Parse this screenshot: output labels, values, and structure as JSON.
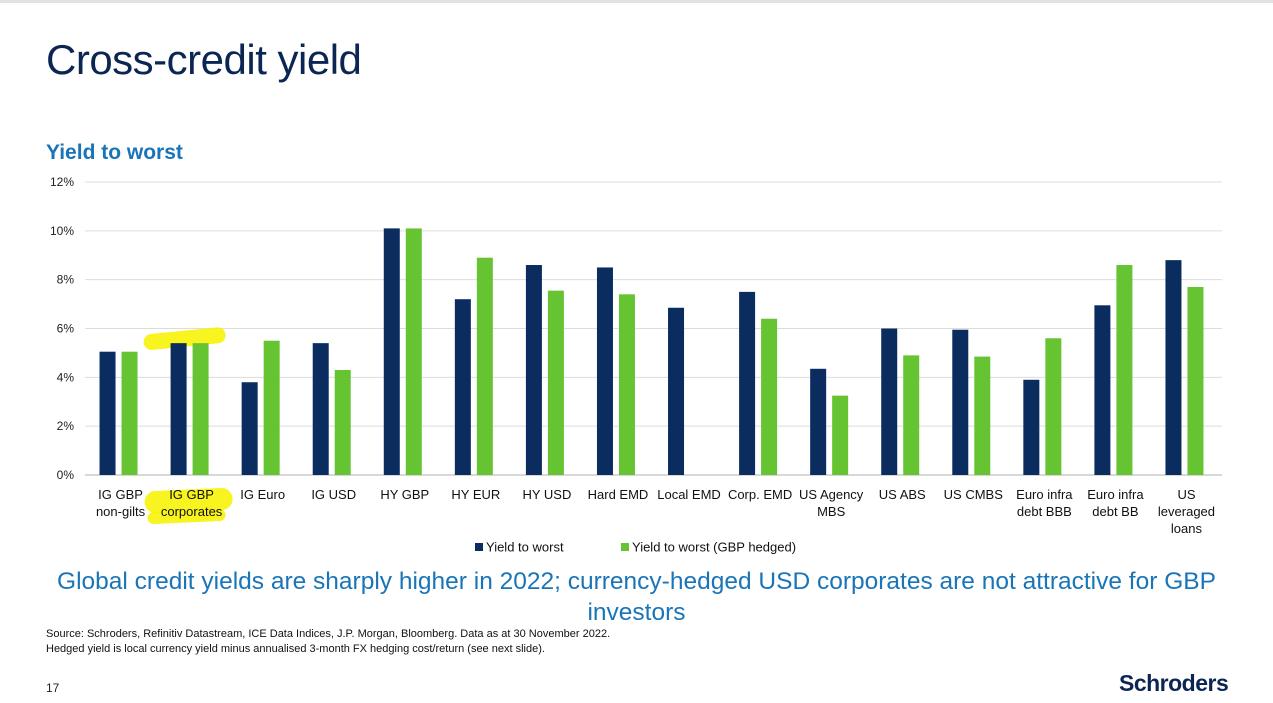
{
  "slide": {
    "title": "Cross-credit yield",
    "headline": "Global credit yields are sharply higher in 2022; currency-hedged USD corporates are not attractive for GBP investors",
    "source_lines": [
      "Source: Schroders, Refinitiv Datastream, ICE Data Indices, J.P. Morgan, Bloomberg. Data as at 30 November 2022.",
      "Hedged yield is local currency yield minus annualised 3-month FX hedging cost/return (see next slide)."
    ],
    "page_number": "17",
    "logo_text": "Schroders"
  },
  "highlight": {
    "category_index": 1,
    "color": "#f6f200"
  },
  "colors": {
    "title": "#0b2653",
    "accent_blue": "#1a75b8"
  },
  "chart_data": {
    "type": "bar",
    "title": "Yield to worst",
    "categories": [
      [
        "IG GBP",
        "non-gilts"
      ],
      [
        "IG GBP",
        "corporates"
      ],
      [
        "IG Euro"
      ],
      [
        "IG USD"
      ],
      [
        "HY GBP"
      ],
      [
        "HY EUR"
      ],
      [
        "HY USD"
      ],
      [
        "Hard EMD"
      ],
      [
        "Local EMD"
      ],
      [
        "Corp. EMD"
      ],
      [
        "US Agency",
        "MBS"
      ],
      [
        "US ABS"
      ],
      [
        "US CMBS"
      ],
      [
        "Euro infra",
        "debt BBB"
      ],
      [
        "Euro infra",
        "debt BB"
      ],
      [
        "US",
        "leveraged",
        "loans"
      ]
    ],
    "series": [
      {
        "name": "Yield to worst",
        "color": "#0b2c5f",
        "values": [
          5.05,
          5.4,
          3.8,
          5.4,
          10.1,
          7.2,
          8.6,
          8.5,
          6.85,
          7.5,
          4.35,
          6.0,
          5.95,
          3.9,
          6.95,
          8.8
        ]
      },
      {
        "name": "Yield to worst (GBP hedged)",
        "color": "#66c432",
        "values": [
          5.05,
          5.4,
          5.5,
          4.3,
          10.1,
          8.9,
          7.55,
          7.4,
          null,
          6.4,
          3.25,
          4.9,
          4.85,
          5.6,
          8.6,
          7.7
        ]
      }
    ],
    "ylim": [
      0,
      12
    ],
    "yticks": [
      0,
      2,
      4,
      6,
      8,
      10,
      12
    ],
    "ytick_labels": [
      "0%",
      "2%",
      "4%",
      "6%",
      "8%",
      "10%",
      "12%"
    ],
    "grid": true,
    "legend_position": "bottom-center"
  }
}
